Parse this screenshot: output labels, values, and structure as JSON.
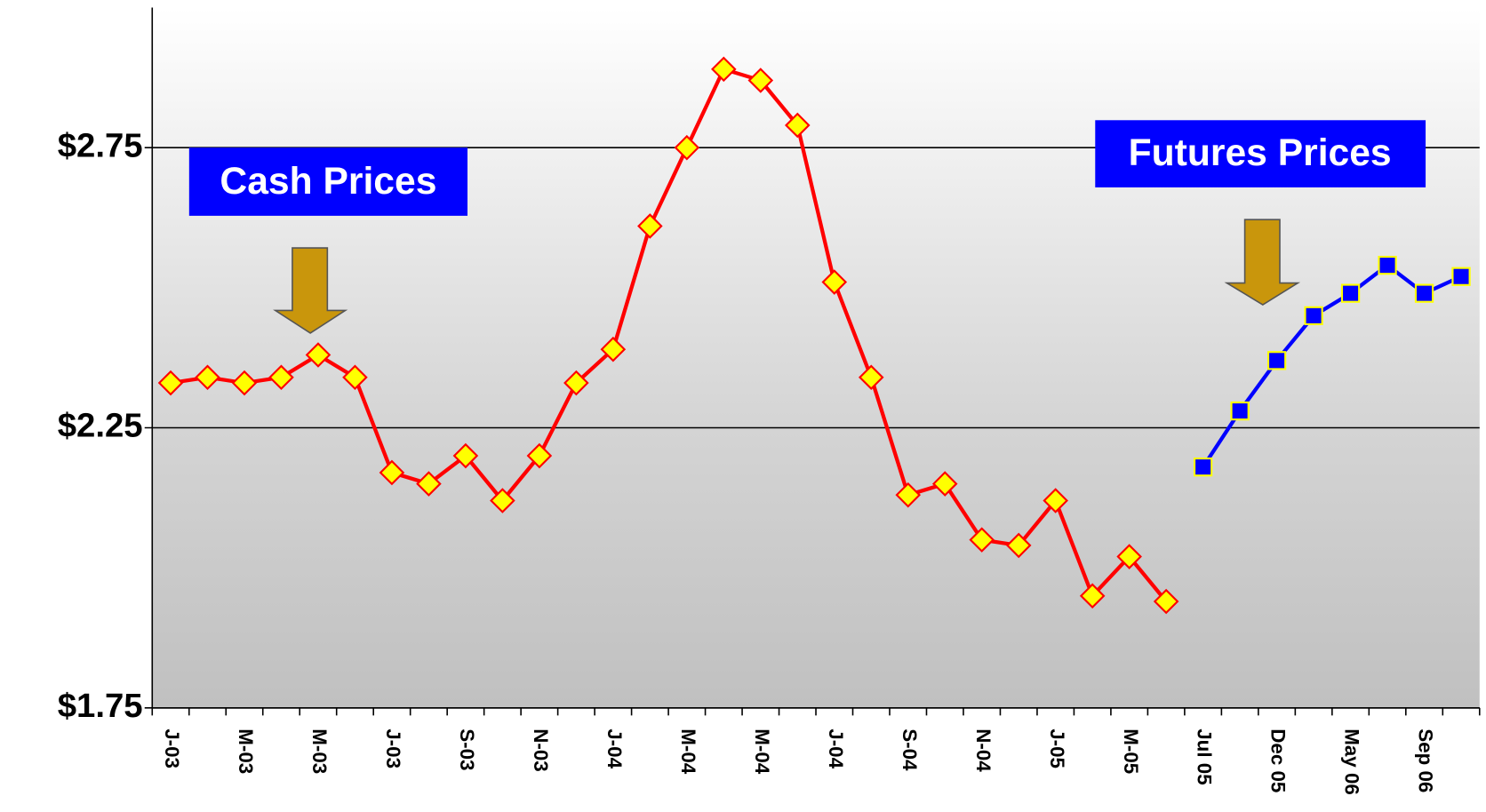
{
  "chart_data": {
    "type": "line",
    "categories": [
      "J-03",
      null,
      "M-03",
      null,
      "M-03",
      null,
      "J-03",
      null,
      "S-03",
      null,
      "N-03",
      null,
      "J-04",
      null,
      "M-04",
      null,
      "M-04",
      null,
      "J-04",
      null,
      "S-04",
      null,
      "N-04",
      null,
      "J-05",
      null,
      "M-05",
      null,
      "Jul 05",
      null,
      "Dec 05",
      null,
      "May 06",
      null,
      "Sep 06",
      null
    ],
    "series": [
      {
        "name": "Cash Prices",
        "color": "#ff0000",
        "marker": "diamond",
        "marker_color": "#ffff00",
        "values": [
          2.33,
          2.34,
          2.33,
          2.34,
          2.38,
          2.34,
          2.17,
          2.15,
          2.2,
          2.12,
          2.2,
          2.33,
          2.39,
          2.61,
          2.75,
          2.89,
          2.87,
          2.79,
          2.51,
          2.34,
          2.13,
          2.15,
          2.05,
          2.04,
          2.12,
          1.95,
          2.02,
          1.94,
          null,
          null,
          null,
          null,
          null,
          null,
          null,
          null
        ]
      },
      {
        "name": "Futures Prices",
        "color": "#0000ff",
        "marker": "square",
        "marker_color": "#0000ff",
        "values": [
          null,
          null,
          null,
          null,
          null,
          null,
          null,
          null,
          null,
          null,
          null,
          null,
          null,
          null,
          null,
          null,
          null,
          null,
          null,
          null,
          null,
          null,
          null,
          null,
          null,
          null,
          null,
          null,
          2.18,
          2.28,
          2.37,
          2.45,
          2.49,
          2.54,
          2.49,
          2.52
        ]
      }
    ],
    "ylim": [
      1.75,
      3.0
    ],
    "yticks": [
      {
        "value": 1.75,
        "label": "$1.75"
      },
      {
        "value": 2.25,
        "label": "$2.25"
      },
      {
        "value": 2.75,
        "label": "$2.75"
      }
    ],
    "grid": true
  }
}
